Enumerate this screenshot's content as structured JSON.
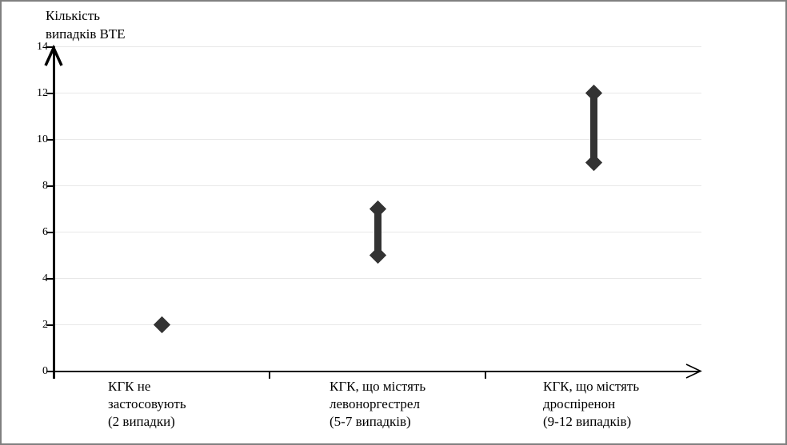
{
  "chart_data": {
    "type": "scatter",
    "title": "Кількість випадків ВТЕ",
    "title_lines": [
      "Кількість",
      "випадків ВТЕ"
    ],
    "ylabel": "Кількість випадків ВТЕ",
    "xlabel": "",
    "ylim": [
      0,
      14
    ],
    "yticks": [
      0,
      2,
      4,
      6,
      8,
      10,
      12,
      14
    ],
    "grid": true,
    "legend_position": "none",
    "categories": [
      "КГК не застосовують (2 випадки)",
      "КГК, що містять левоноргестрел (5-7 випадків)",
      "КГК, що містять дроспіренон (9-12 випадків)"
    ],
    "category_label_lines": [
      [
        "КГК не",
        "застосовують",
        "(2 випадки)"
      ],
      [
        "КГК, що містять",
        "левоноргестрел",
        "(5-7 випадків)"
      ],
      [
        "КГК, що містять",
        "дроспіренон",
        "(9-12 випадків)"
      ]
    ],
    "series": [
      {
        "name": "Кількість випадків ВТЕ",
        "ranges": [
          [
            2,
            2
          ],
          [
            5,
            7
          ],
          [
            9,
            12
          ]
        ]
      }
    ],
    "colors": {
      "marker": "#333333",
      "gridline": "#e8e8e8",
      "axis": "#000000",
      "text": "#000000",
      "frame_border": "#808080",
      "background": "#ffffff"
    }
  }
}
